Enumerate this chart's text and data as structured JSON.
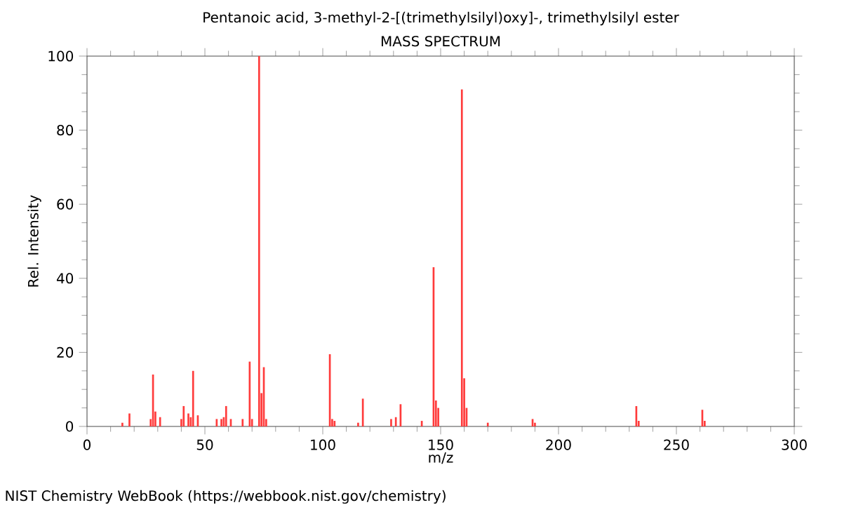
{
  "chart_data": {
    "type": "bar",
    "title": "Pentanoic acid, 3-methyl-2-[(trimethylsilyl)oxy]-, trimethylsilyl ester",
    "subtitle": "MASS SPECTRUM",
    "xlabel": "m/z",
    "ylabel": "Rel. Intensity",
    "annotations": [
      "NIST Chemistry WebBook (https://webbook.nist.gov/chemistry)"
    ],
    "x": [
      15,
      18,
      27,
      28,
      29,
      31,
      40,
      41,
      43,
      44,
      45,
      47,
      55,
      57,
      58,
      59,
      61,
      66,
      69,
      70,
      73,
      74,
      75,
      76,
      103,
      104,
      105,
      115,
      117,
      129,
      131,
      133,
      142,
      147,
      148,
      149,
      159,
      160,
      161,
      170,
      189,
      190,
      233,
      234,
      261,
      262
    ],
    "values": [
      1,
      3.5,
      2,
      14,
      4,
      2.5,
      2,
      5.5,
      3.5,
      2.5,
      15,
      3,
      2,
      2,
      2.5,
      5.5,
      2,
      2,
      17.5,
      2,
      100,
      9,
      16,
      2,
      19.5,
      2,
      1.5,
      1,
      7.5,
      2,
      2.5,
      6,
      1.5,
      43,
      7,
      5,
      91,
      13,
      5,
      1,
      2,
      1,
      5.5,
      1.5,
      4.5,
      1.5
    ],
    "color": "#ff3b3b",
    "xlim": [
      0,
      300
    ],
    "xticks": [
      0,
      50,
      100,
      150,
      200,
      250,
      300
    ],
    "ylim": [
      0,
      100
    ],
    "yticks": [
      0,
      20,
      40,
      60,
      80,
      100
    ],
    "grid": false
  }
}
